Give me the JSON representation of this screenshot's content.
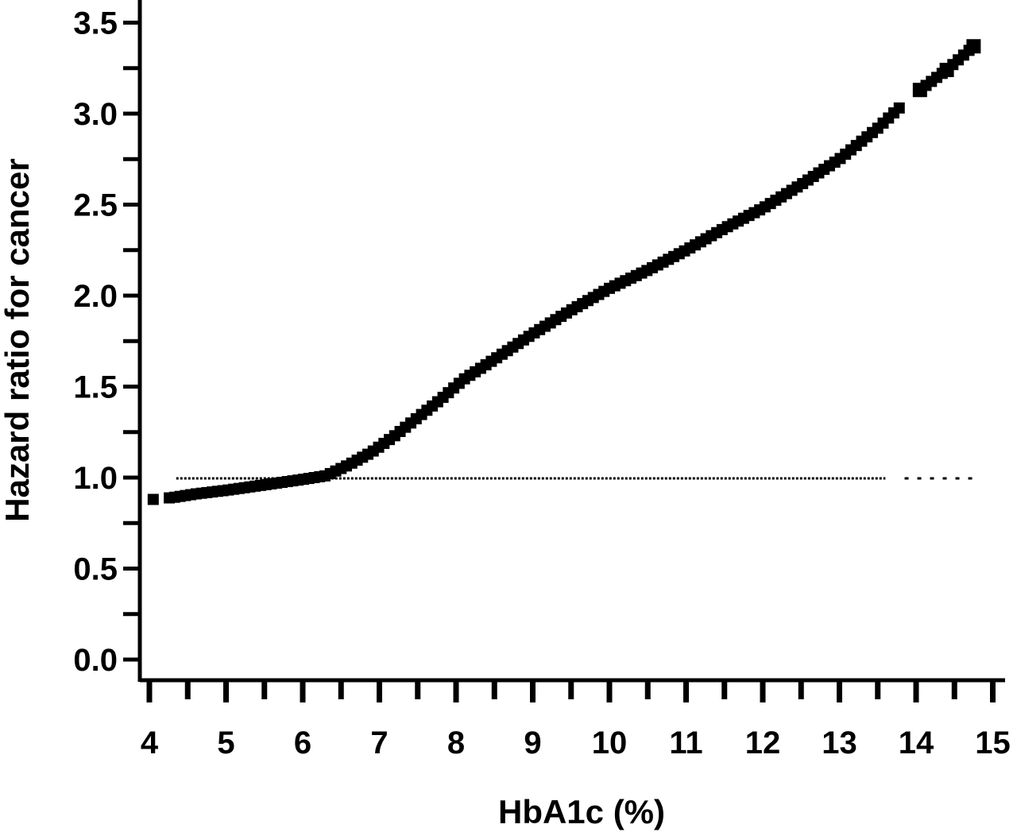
{
  "chart_data": {
    "type": "scatter",
    "xlabel": "HbA1c (%)",
    "ylabel": "Hazard ratio for cancer",
    "xlim": [
      4,
      15
    ],
    "ylim": [
      0,
      3.5
    ],
    "x_ticks": [
      "4",
      "5",
      "6",
      "7",
      "8",
      "9",
      "10",
      "11",
      "12",
      "13",
      "14",
      "15"
    ],
    "y_ticks": [
      "0.0",
      "0.5",
      "1.0",
      "1.5",
      "2.0",
      "2.5",
      "3.0",
      "3.5"
    ],
    "reference_line_y": 1.0,
    "grid": false,
    "legend": "none",
    "curve_points": [
      [
        4.05,
        0.88
      ],
      [
        4.3,
        0.89
      ],
      [
        4.6,
        0.91
      ],
      [
        5.0,
        0.93
      ],
      [
        5.5,
        0.96
      ],
      [
        6.0,
        0.99
      ],
      [
        6.3,
        1.01
      ],
      [
        6.6,
        1.07
      ],
      [
        6.9,
        1.14
      ],
      [
        7.2,
        1.23
      ],
      [
        7.5,
        1.33
      ],
      [
        7.8,
        1.43
      ],
      [
        8.1,
        1.54
      ],
      [
        8.5,
        1.65
      ],
      [
        9.0,
        1.79
      ],
      [
        9.5,
        1.92
      ],
      [
        10.0,
        2.04
      ],
      [
        10.5,
        2.14
      ],
      [
        11.0,
        2.25
      ],
      [
        11.5,
        2.37
      ],
      [
        12.0,
        2.48
      ],
      [
        12.5,
        2.61
      ],
      [
        13.0,
        2.75
      ],
      [
        13.5,
        2.92
      ],
      [
        13.75,
        3.02
      ],
      [
        14.05,
        3.13
      ],
      [
        14.4,
        3.24
      ],
      [
        14.75,
        3.37
      ]
    ],
    "gaps_x": [
      [
        4.1,
        4.25
      ],
      [
        13.8,
        14.0
      ]
    ]
  }
}
